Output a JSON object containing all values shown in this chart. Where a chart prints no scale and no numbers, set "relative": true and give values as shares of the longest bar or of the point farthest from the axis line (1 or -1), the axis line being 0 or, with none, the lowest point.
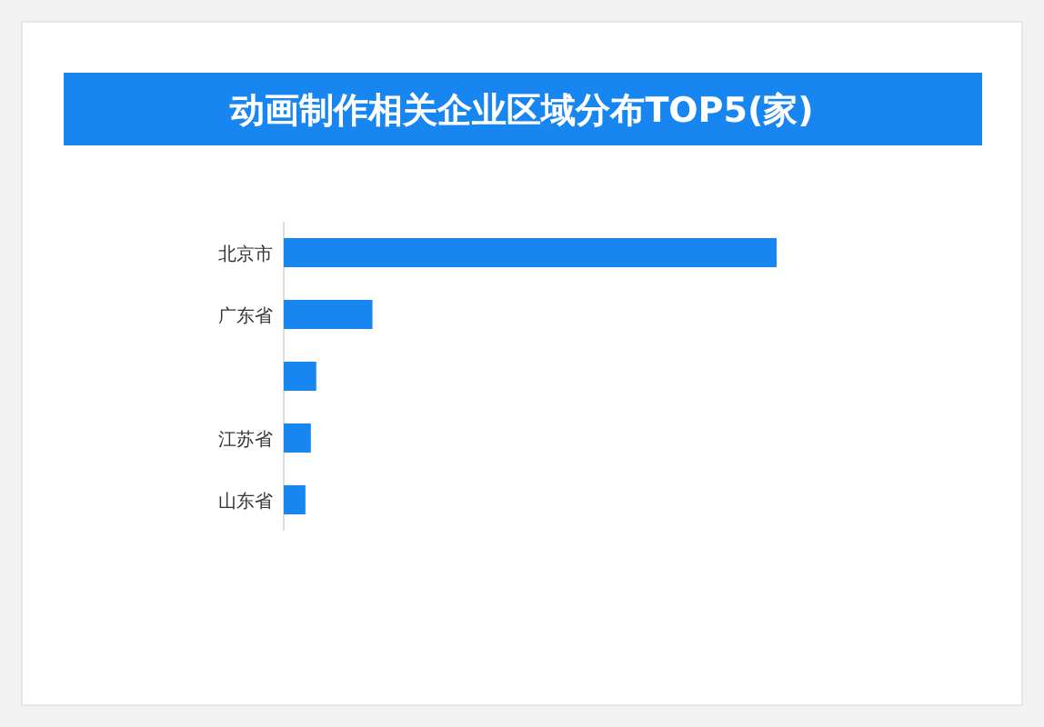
{
  "chart_data": {
    "type": "bar",
    "orientation": "horizontal",
    "relative": true,
    "title": "动画制作相关企业区域分布TOP5(家)",
    "categories": [
      "北京市",
      "广东省",
      null,
      "江苏省",
      "山东省"
    ],
    "values": [
      1,
      0.18,
      0.066,
      0.055,
      0.044
    ],
    "color": "#1786f0"
  }
}
